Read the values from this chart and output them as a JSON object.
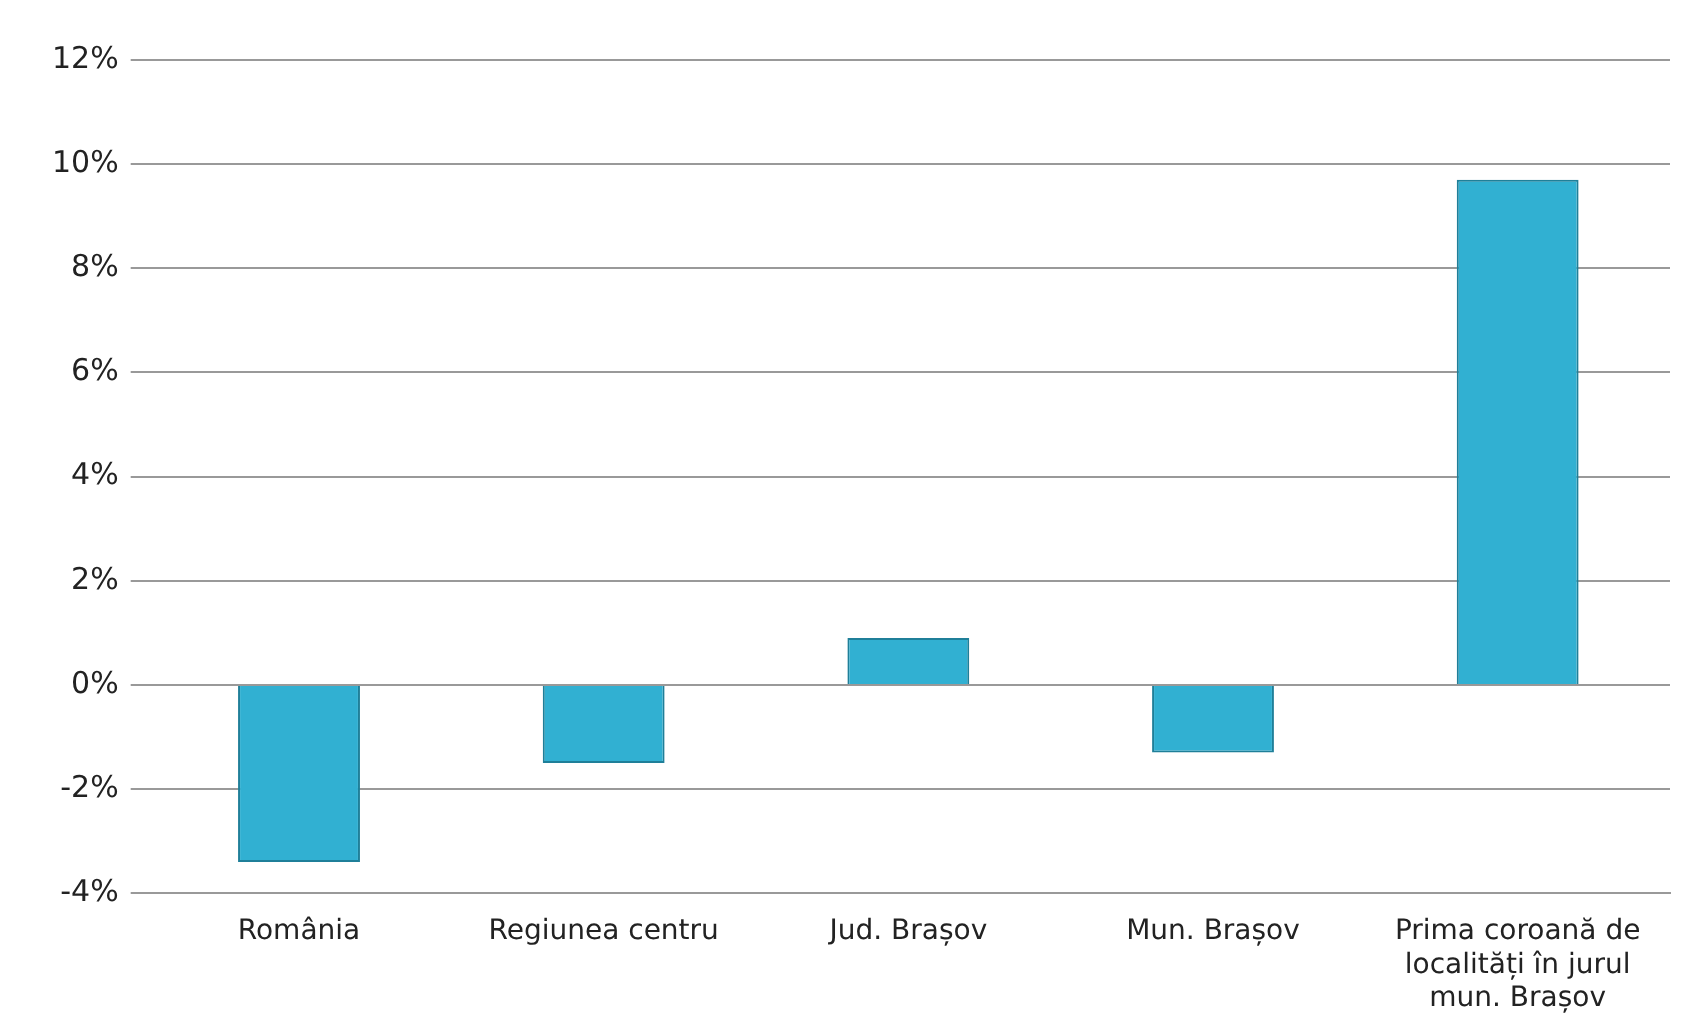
{
  "chart_data": {
    "type": "bar",
    "categories": [
      "România",
      "Regiunea centru",
      "Jud. Brașov",
      "Mun. Brașov",
      "Prima coroană de localități în jurul mun. Brașov"
    ],
    "values": [
      -3.4,
      -1.5,
      0.9,
      -1.3,
      9.7
    ],
    "color": "#31b0d2",
    "ylim": [
      -4,
      12
    ],
    "yticks": [
      {
        "value": -4,
        "label": "-4%"
      },
      {
        "value": -2,
        "label": "-2%"
      },
      {
        "value": 0,
        "label": "0%"
      },
      {
        "value": 2,
        "label": "2%"
      },
      {
        "value": 4,
        "label": "4%"
      },
      {
        "value": 6,
        "label": "6%"
      },
      {
        "value": 8,
        "label": "8%"
      },
      {
        "value": 10,
        "label": "10%"
      },
      {
        "value": 12,
        "label": "12%"
      }
    ],
    "grid": "y",
    "legend": false
  }
}
